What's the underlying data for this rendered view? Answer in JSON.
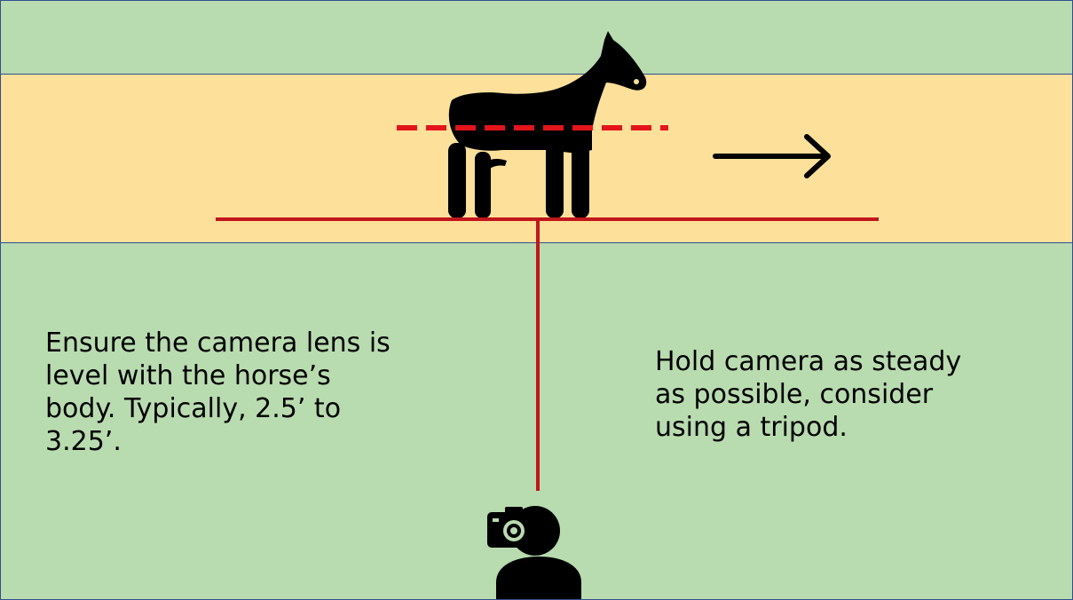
{
  "colors": {
    "grass": "#b9dbb0",
    "track": "#fde09a",
    "border": "#2f4f8f",
    "guide_line": "#c0161c",
    "level_line": "#e3151b",
    "silhouette": "#000000"
  },
  "icons": {
    "horse": "horse-icon",
    "direction": "arrow-right-icon",
    "photographer": "photographer-icon"
  },
  "captions": {
    "left": "Ensure the camera lens is level with the horse’s body. Typically, 2.5’ to 3.25’.",
    "right": "Hold camera as steady as possible, consider using a tripod."
  }
}
